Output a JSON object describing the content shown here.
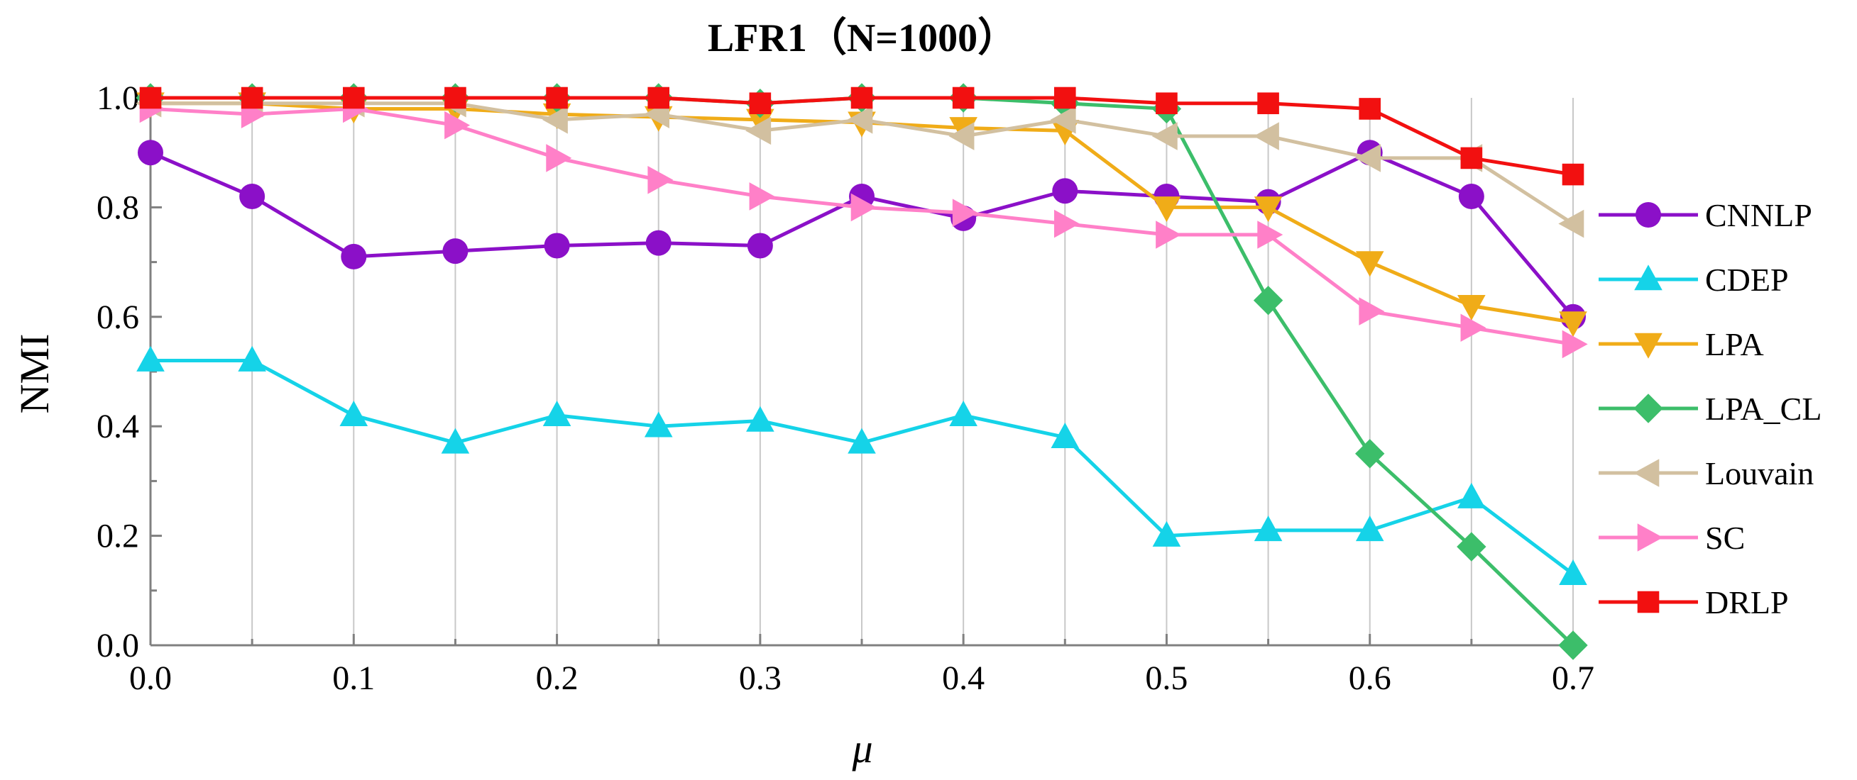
{
  "chart_data": {
    "type": "line",
    "title": "LFR1（N=1000）",
    "xlabel": "μ",
    "ylabel": "NMI",
    "x": [
      0.0,
      0.05,
      0.1,
      0.15,
      0.2,
      0.25,
      0.3,
      0.35,
      0.4,
      0.45,
      0.5,
      0.55,
      0.6,
      0.65,
      0.7
    ],
    "xticks": [
      "0.0",
      "0.1",
      "0.2",
      "0.3",
      "0.4",
      "0.5",
      "0.6",
      "0.7"
    ],
    "yticks": [
      "0.0",
      "0.2",
      "0.4",
      "0.6",
      "0.8",
      "1.0"
    ],
    "xlim": [
      0.0,
      0.7
    ],
    "ylim": [
      0.0,
      1.0
    ],
    "grid": "vertical",
    "legend_position": "right",
    "series": [
      {
        "name": "CNNLP",
        "color": "#8b10c8",
        "marker": "circle",
        "values": [
          0.9,
          0.82,
          0.71,
          0.72,
          0.73,
          0.735,
          0.73,
          0.82,
          0.78,
          0.83,
          0.82,
          0.81,
          0.9,
          0.82,
          0.6
        ]
      },
      {
        "name": "CDEP",
        "color": "#15d3e8",
        "marker": "triangle-up",
        "values": [
          0.52,
          0.52,
          0.42,
          0.37,
          0.42,
          0.4,
          0.41,
          0.37,
          0.42,
          0.38,
          0.2,
          0.21,
          0.21,
          0.27,
          0.13
        ]
      },
      {
        "name": "LPA",
        "color": "#f0ac18",
        "marker": "triangle-down",
        "values": [
          0.99,
          0.99,
          0.98,
          0.98,
          0.97,
          0.965,
          0.96,
          0.955,
          0.945,
          0.94,
          0.8,
          0.8,
          0.7,
          0.62,
          0.59
        ]
      },
      {
        "name": "LPA_CL",
        "color": "#3cbe6a",
        "marker": "diamond",
        "values": [
          1.0,
          1.0,
          1.0,
          1.0,
          1.0,
          1.0,
          0.99,
          1.0,
          1.0,
          0.99,
          0.98,
          0.63,
          0.35,
          0.18,
          0.0
        ]
      },
      {
        "name": "Louvain",
        "color": "#d2c0a0",
        "marker": "triangle-left",
        "values": [
          0.99,
          0.99,
          0.99,
          0.99,
          0.96,
          0.97,
          0.94,
          0.96,
          0.93,
          0.96,
          0.93,
          0.93,
          0.89,
          0.89,
          0.77
        ]
      },
      {
        "name": "SC",
        "color": "#ff80c8",
        "marker": "triangle-right",
        "values": [
          0.98,
          0.97,
          0.98,
          0.95,
          0.89,
          0.85,
          0.82,
          0.8,
          0.79,
          0.77,
          0.75,
          0.75,
          0.61,
          0.58,
          0.55
        ]
      },
      {
        "name": "DRLP",
        "color": "#f21010",
        "marker": "square",
        "values": [
          1.0,
          1.0,
          1.0,
          1.0,
          1.0,
          1.0,
          0.99,
          1.0,
          1.0,
          1.0,
          0.99,
          0.99,
          0.98,
          0.89,
          0.86
        ]
      }
    ]
  }
}
